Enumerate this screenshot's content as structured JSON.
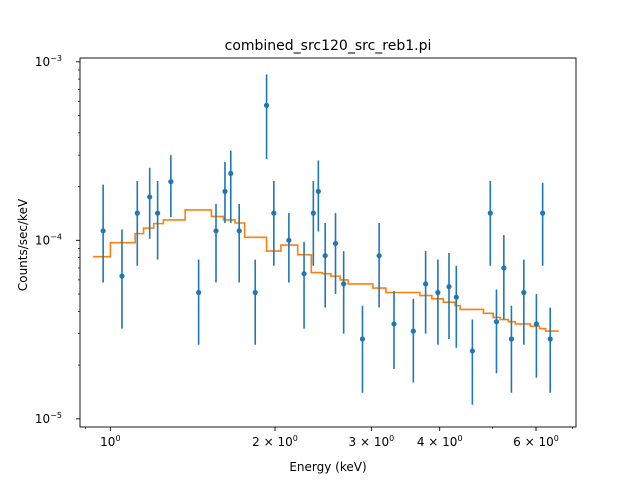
{
  "chart_data": {
    "type": "scatter",
    "title": "combined_src120_src_reb1.pi",
    "xlabel": "Energy (keV)",
    "ylabel": "Counts/sec/keV",
    "xscale": "log",
    "yscale": "log",
    "xlim": [
      0.88,
      7.1
    ],
    "ylim": [
      9e-06,
      0.00105
    ],
    "grid": false,
    "x_ticks": [
      {
        "value": 1,
        "label": "10^0",
        "mantissa": "",
        "exponent": "0"
      },
      {
        "value": 2,
        "label": "2×10^0",
        "mantissa": "2 × ",
        "exponent": "0"
      },
      {
        "value": 3,
        "label": "3×10^0",
        "mantissa": "3 × ",
        "exponent": "0"
      },
      {
        "value": 4,
        "label": "4×10^0",
        "mantissa": "4 × ",
        "exponent": "0"
      },
      {
        "value": 6,
        "label": "6×10^0",
        "mantissa": "6 × ",
        "exponent": "0"
      }
    ],
    "y_ticks": [
      {
        "value": 1e-05,
        "label": "10^-5",
        "exponent": "−5"
      },
      {
        "value": 0.0001,
        "label": "10^-4",
        "exponent": "−4"
      },
      {
        "value": 0.001,
        "label": "10^-3",
        "exponent": "−3"
      }
    ],
    "colors": {
      "data": "#1f77b4",
      "model": "#ff7f0e"
    },
    "data_points": [
      {
        "x": 0.97,
        "y": 0.000113,
        "ylo": 5.8e-05,
        "yhi": 0.000205
      },
      {
        "x": 1.05,
        "y": 6.3e-05,
        "ylo": 3.2e-05,
        "yhi": 0.000115
      },
      {
        "x": 1.12,
        "y": 0.000142,
        "ylo": 7.2e-05,
        "yhi": 0.000215
      },
      {
        "x": 1.18,
        "y": 0.000175,
        "ylo": 0.000102,
        "yhi": 0.000255
      },
      {
        "x": 1.22,
        "y": 0.000142,
        "ylo": 7.8e-05,
        "yhi": 0.000215
      },
      {
        "x": 1.29,
        "y": 0.000213,
        "ylo": 0.000135,
        "yhi": 0.0003
      },
      {
        "x": 1.45,
        "y": 5.1e-05,
        "ylo": 2.6e-05,
        "yhi": 7.8e-05
      },
      {
        "x": 1.56,
        "y": 0.000113,
        "ylo": 5.8e-05,
        "yhi": 0.00016
      },
      {
        "x": 1.62,
        "y": 0.000188,
        "ylo": 0.000125,
        "yhi": 0.000275
      },
      {
        "x": 1.66,
        "y": 0.000237,
        "ylo": 0.000125,
        "yhi": 0.000318
      },
      {
        "x": 1.72,
        "y": 0.000113,
        "ylo": 5.8e-05,
        "yhi": 0.00016
      },
      {
        "x": 1.84,
        "y": 5.1e-05,
        "ylo": 2.6e-05,
        "yhi": 7.8e-05
      },
      {
        "x": 1.93,
        "y": 0.00057,
        "ylo": 0.000285,
        "yhi": 0.00085
      },
      {
        "x": 1.99,
        "y": 0.000142,
        "ylo": 7.2e-05,
        "yhi": 0.000215
      },
      {
        "x": 2.12,
        "y": 0.0001,
        "ylo": 5.8e-05,
        "yhi": 0.000142
      },
      {
        "x": 2.26,
        "y": 6.5e-05,
        "ylo": 3.2e-05,
        "yhi": 9.8e-05
      },
      {
        "x": 2.35,
        "y": 0.000142,
        "ylo": 7.2e-05,
        "yhi": 0.000215
      },
      {
        "x": 2.4,
        "y": 0.000188,
        "ylo": 0.000112,
        "yhi": 0.00028
      },
      {
        "x": 2.47,
        "y": 8.2e-05,
        "ylo": 4.2e-05,
        "yhi": 0.000125
      },
      {
        "x": 2.58,
        "y": 9.6e-05,
        "ylo": 5e-05,
        "yhi": 0.000142
      },
      {
        "x": 2.67,
        "y": 5.7e-05,
        "ylo": 3e-05,
        "yhi": 8.7e-05
      },
      {
        "x": 2.89,
        "y": 2.8e-05,
        "ylo": 1.4e-05,
        "yhi": 4.3e-05
      },
      {
        "x": 3.1,
        "y": 8.2e-05,
        "ylo": 4.2e-05,
        "yhi": 0.000125
      },
      {
        "x": 3.3,
        "y": 3.4e-05,
        "ylo": 1.9e-05,
        "yhi": 5.2e-05
      },
      {
        "x": 3.58,
        "y": 3.1e-05,
        "ylo": 1.6e-05,
        "yhi": 4.7e-05
      },
      {
        "x": 3.77,
        "y": 5.7e-05,
        "ylo": 3e-05,
        "yhi": 8.7e-05
      },
      {
        "x": 3.97,
        "y": 5.1e-05,
        "ylo": 2.6e-05,
        "yhi": 7.8e-05
      },
      {
        "x": 4.16,
        "y": 5.5e-05,
        "ylo": 2.8e-05,
        "yhi": 8.5e-05
      },
      {
        "x": 4.29,
        "y": 4.8e-05,
        "ylo": 2.5e-05,
        "yhi": 7.2e-05
      },
      {
        "x": 4.59,
        "y": 2.4e-05,
        "ylo": 1.2e-05,
        "yhi": 3.6e-05
      },
      {
        "x": 4.95,
        "y": 0.000142,
        "ylo": 7.2e-05,
        "yhi": 0.000215
      },
      {
        "x": 5.08,
        "y": 3.5e-05,
        "ylo": 1.8e-05,
        "yhi": 5.3e-05
      },
      {
        "x": 5.24,
        "y": 7e-05,
        "ylo": 3.6e-05,
        "yhi": 0.000107
      },
      {
        "x": 5.41,
        "y": 2.8e-05,
        "ylo": 1.4e-05,
        "yhi": 4.3e-05
      },
      {
        "x": 5.7,
        "y": 5.1e-05,
        "ylo": 2.6e-05,
        "yhi": 7.8e-05
      },
      {
        "x": 6.01,
        "y": 3.4e-05,
        "ylo": 1.7e-05,
        "yhi": 5e-05
      },
      {
        "x": 6.17,
        "y": 0.000142,
        "ylo": 7.2e-05,
        "yhi": 0.00021
      },
      {
        "x": 6.37,
        "y": 2.8e-05,
        "ylo": 1.4e-05,
        "yhi": 4.2e-05
      }
    ],
    "model_steps": [
      {
        "x0": 0.93,
        "x1": 1.0,
        "y": 8.1e-05
      },
      {
        "x0": 1.0,
        "x1": 1.11,
        "y": 9.7e-05
      },
      {
        "x0": 1.11,
        "x1": 1.15,
        "y": 0.000109
      },
      {
        "x0": 1.15,
        "x1": 1.2,
        "y": 0.000117
      },
      {
        "x0": 1.2,
        "x1": 1.25,
        "y": 0.000124
      },
      {
        "x0": 1.25,
        "x1": 1.37,
        "y": 0.00013
      },
      {
        "x0": 1.37,
        "x1": 1.53,
        "y": 0.000148
      },
      {
        "x0": 1.53,
        "x1": 1.61,
        "y": 0.000136
      },
      {
        "x0": 1.61,
        "x1": 1.69,
        "y": 0.00013
      },
      {
        "x0": 1.69,
        "x1": 1.76,
        "y": 0.000125
      },
      {
        "x0": 1.76,
        "x1": 1.93,
        "y": 0.000104
      },
      {
        "x0": 1.93,
        "x1": 2.05,
        "y": 8.7e-05
      },
      {
        "x0": 2.05,
        "x1": 2.2,
        "y": 9.4e-05
      },
      {
        "x0": 2.2,
        "x1": 2.33,
        "y": 8.3e-05
      },
      {
        "x0": 2.33,
        "x1": 2.38,
        "y": 6.6e-05
      },
      {
        "x0": 2.38,
        "x1": 2.44,
        "y": 6.6e-05
      },
      {
        "x0": 2.44,
        "x1": 2.53,
        "y": 6.5e-05
      },
      {
        "x0": 2.53,
        "x1": 2.63,
        "y": 6.3e-05
      },
      {
        "x0": 2.63,
        "x1": 2.72,
        "y": 6e-05
      },
      {
        "x0": 2.72,
        "x1": 3.02,
        "y": 5.7e-05
      },
      {
        "x0": 3.02,
        "x1": 3.19,
        "y": 5.4e-05
      },
      {
        "x0": 3.19,
        "x1": 3.68,
        "y": 5.1e-05
      },
      {
        "x0": 3.68,
        "x1": 3.87,
        "y": 4.9e-05
      },
      {
        "x0": 3.87,
        "x1": 4.06,
        "y": 4.7e-05
      },
      {
        "x0": 4.06,
        "x1": 4.27,
        "y": 4.5e-05
      },
      {
        "x0": 4.27,
        "x1": 4.36,
        "y": 4.3e-05
      },
      {
        "x0": 4.36,
        "x1": 4.81,
        "y": 4.1e-05
      },
      {
        "x0": 4.81,
        "x1": 5.01,
        "y": 3.9e-05
      },
      {
        "x0": 5.01,
        "x1": 5.16,
        "y": 3.7e-05
      },
      {
        "x0": 5.16,
        "x1": 5.34,
        "y": 3.6e-05
      },
      {
        "x0": 5.34,
        "x1": 5.5,
        "y": 3.5e-05
      },
      {
        "x0": 5.5,
        "x1": 5.86,
        "y": 3.4e-05
      },
      {
        "x0": 5.86,
        "x1": 6.09,
        "y": 3.3e-05
      },
      {
        "x0": 6.09,
        "x1": 6.25,
        "y": 3.2e-05
      },
      {
        "x0": 6.25,
        "x1": 6.6,
        "y": 3.1e-05
      }
    ]
  }
}
